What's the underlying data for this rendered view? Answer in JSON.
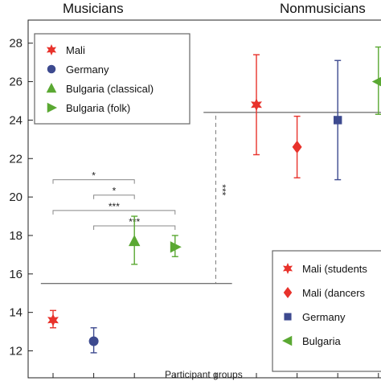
{
  "chart_data": {
    "type": "scatter",
    "group_titles": [
      "Musicians",
      "Nonmusicians"
    ],
    "xlabel": "Participant groups",
    "ylabel": "",
    "ylim": [
      10.6,
      29.2
    ],
    "yticks": [
      12,
      14,
      16,
      18,
      20,
      22,
      24,
      26,
      28
    ],
    "x_categories": 9,
    "series": [
      {
        "name": "Mali",
        "group": "Musicians",
        "marker": "star",
        "color": "#e8322b",
        "x": 1,
        "y": 13.6,
        "err_low": 13.2,
        "err_high": 14.1
      },
      {
        "name": "Germany",
        "group": "Musicians",
        "marker": "circle",
        "color": "#3d4a8f",
        "x": 2,
        "y": 12.5,
        "err_low": 11.9,
        "err_high": 13.2
      },
      {
        "name": "Bulgaria (classical)",
        "group": "Musicians",
        "marker": "triangle-up",
        "color": "#5aa832",
        "x": 3,
        "y": 17.7,
        "err_low": 16.5,
        "err_high": 19.0
      },
      {
        "name": "Bulgaria (folk)",
        "group": "Musicians",
        "marker": "triangle-right",
        "color": "#5aa832",
        "x": 4,
        "y": 17.4,
        "err_low": 16.9,
        "err_high": 18.0
      },
      {
        "name": "Mali (students)",
        "group": "Nonmusicians",
        "marker": "star",
        "color": "#e8322b",
        "x": 6,
        "y": 24.8,
        "err_low": 22.2,
        "err_high": 27.4
      },
      {
        "name": "Mali (dancers)",
        "group": "Nonmusicians",
        "marker": "diamond",
        "color": "#e8322b",
        "x": 7,
        "y": 22.6,
        "err_low": 21.0,
        "err_high": 24.2
      },
      {
        "name": "Germany",
        "group": "Nonmusicians",
        "marker": "square",
        "color": "#3d4a8f",
        "x": 8,
        "y": 24.0,
        "err_low": 20.9,
        "err_high": 27.1
      },
      {
        "name": "Bulgaria",
        "group": "Nonmusicians",
        "marker": "triangle-left",
        "color": "#5aa832",
        "x": 9,
        "y": 26.0,
        "err_low": 24.3,
        "err_high": 27.8
      }
    ],
    "group_means": [
      {
        "group": "Musicians",
        "y": 15.5,
        "x_range": [
          0.7,
          5.4
        ]
      },
      {
        "group": "Nonmusicians",
        "y": 24.4,
        "x_range": [
          4.7,
          9.6
        ]
      }
    ],
    "significance": [
      {
        "label": "*",
        "x1": 1,
        "x2": 3,
        "y": 20.9
      },
      {
        "label": "*",
        "x1": 2,
        "x2": 3,
        "y": 20.1
      },
      {
        "label": "***",
        "x1": 1,
        "x2": 4,
        "y": 19.3
      },
      {
        "label": "***",
        "x1": 2,
        "x2": 4,
        "y": 18.5
      },
      {
        "label": "***",
        "between": "group_means",
        "x": 5.0
      }
    ],
    "legends": [
      {
        "placement": "top-left",
        "entries": [
          "Mali",
          "Germany",
          "Bulgaria (classical)",
          "Bulgaria (folk)"
        ]
      },
      {
        "placement": "bottom-right",
        "entries": [
          "Mali (students",
          "Mali (dancers",
          "Germany",
          "Bulgaria"
        ]
      }
    ],
    "grid": false
  }
}
